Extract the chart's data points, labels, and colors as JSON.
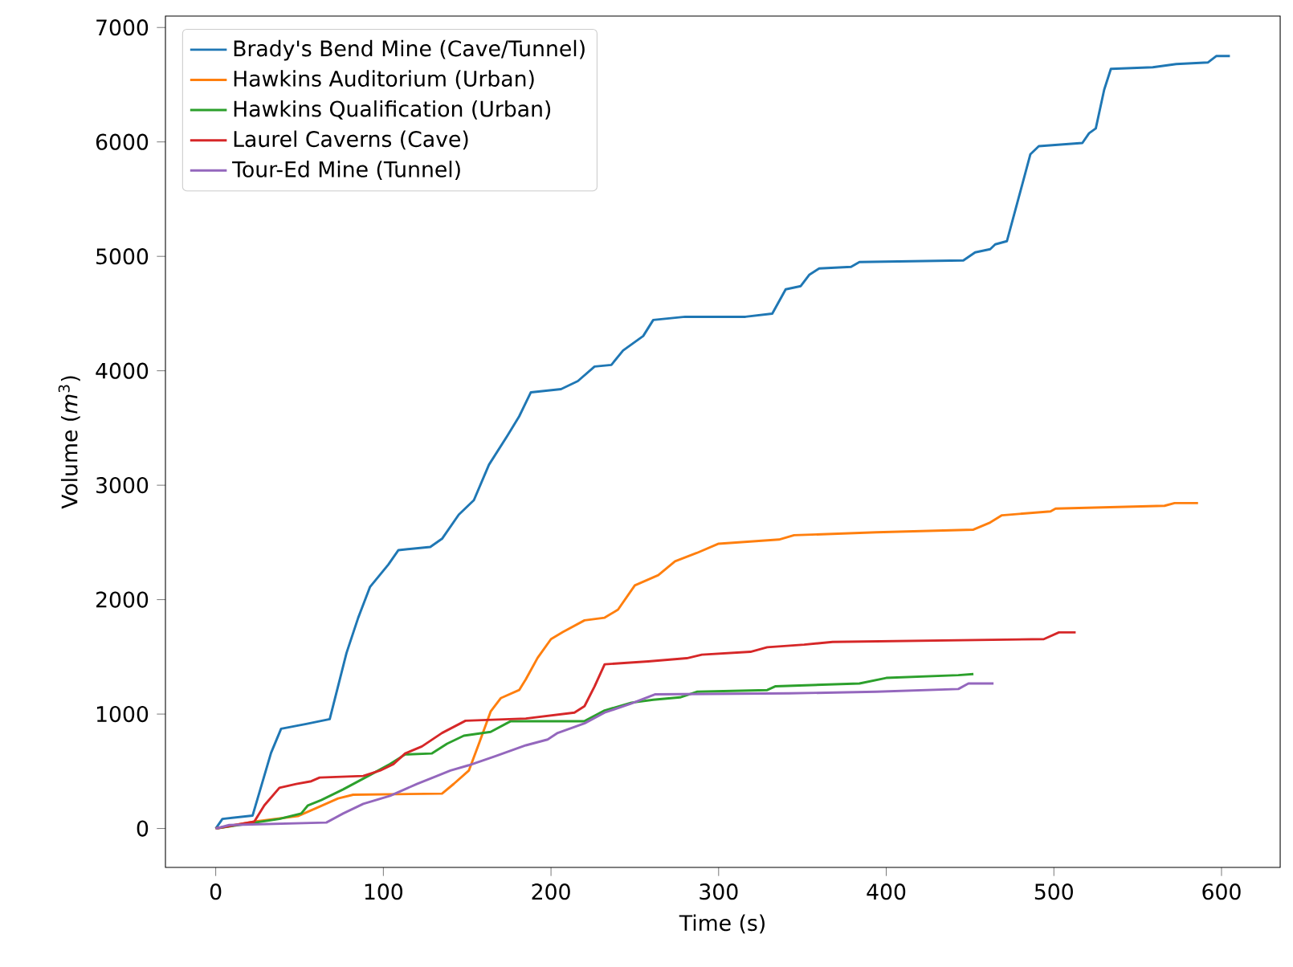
{
  "chart_data": {
    "type": "line",
    "xlabel": "Time (s)",
    "ylabel": "Volume (*m*$^{3}$)",
    "xlim": [
      -30,
      635
    ],
    "ylim": [
      -340,
      7100
    ],
    "xticks": [
      0,
      100,
      200,
      300,
      400,
      500,
      600
    ],
    "yticks": [
      0,
      1000,
      2000,
      3000,
      4000,
      5000,
      6000,
      7000
    ],
    "grid": false,
    "legend": "top left",
    "marker": "none",
    "line_style": "solid",
    "series": [
      {
        "name": "Brady's Bend Mine (Cave/Tunnel)",
        "color": "#1f77b4",
        "x": [
          0,
          4,
          22,
          33,
          39,
          54,
          68,
          78,
          85,
          92,
          103,
          109,
          128,
          135,
          145,
          154,
          163,
          174,
          181,
          188,
          206,
          216,
          226,
          236,
          243,
          255,
          261,
          280,
          316,
          332,
          340,
          349,
          354,
          360,
          379,
          384,
          446,
          453,
          462,
          465,
          472,
          486,
          491,
          517,
          521,
          525,
          530,
          534,
          559,
          573,
          592,
          597,
          605
        ],
        "values": [
          0,
          84,
          113,
          661,
          872,
          914,
          956,
          1533,
          1842,
          2110,
          2307,
          2433,
          2461,
          2532,
          2743,
          2869,
          3179,
          3432,
          3601,
          3812,
          3840,
          3910,
          4037,
          4051,
          4177,
          4304,
          4444,
          4472,
          4472,
          4500,
          4712,
          4740,
          4838,
          4894,
          4908,
          4950,
          4965,
          5035,
          5063,
          5105,
          5133,
          5893,
          5963,
          5991,
          6076,
          6118,
          6456,
          6638,
          6652,
          6680,
          6695,
          6751,
          6751
        ]
      },
      {
        "name": "Hawkins Auditorium (Urban)",
        "color": "#ff7f0e",
        "x": [
          0,
          23,
          49,
          60,
          73,
          82,
          135,
          142,
          151,
          157,
          164,
          170,
          181,
          185,
          192,
          200,
          207,
          220,
          232,
          240,
          250,
          264,
          274,
          287,
          300,
          336,
          345,
          394,
          452,
          462,
          469,
          498,
          501,
          566,
          572,
          586
        ],
        "values": [
          0,
          60,
          108,
          178,
          263,
          295,
          305,
          390,
          506,
          741,
          1022,
          1139,
          1210,
          1304,
          1491,
          1655,
          1716,
          1819,
          1842,
          1913,
          2124,
          2214,
          2335,
          2408,
          2489,
          2525,
          2563,
          2588,
          2612,
          2674,
          2737,
          2771,
          2796,
          2820,
          2844,
          2844
        ]
      },
      {
        "name": "Hawkins Qualification (Urban)",
        "color": "#2ca02c",
        "x": [
          0,
          38,
          51,
          55,
          63,
          76,
          91,
          104,
          113,
          129,
          138,
          148,
          164,
          176,
          220,
          232,
          248,
          261,
          277,
          287,
          329,
          334,
          384,
          400,
          443,
          452
        ],
        "values": [
          0,
          84,
          131,
          202,
          249,
          342,
          459,
          563,
          647,
          656,
          741,
          811,
          844,
          938,
          938,
          1031,
          1100,
          1125,
          1146,
          1195,
          1210,
          1243,
          1267,
          1316,
          1340,
          1350
        ]
      },
      {
        "name": "Laurel Caverns (Cave)",
        "color": "#d62728",
        "x": [
          0,
          23,
          29,
          38,
          48,
          57,
          62,
          88,
          98,
          106,
          113,
          123,
          135,
          149,
          185,
          214,
          220,
          226,
          232,
          258,
          281,
          290,
          319,
          329,
          351,
          368,
          494,
          503,
          513
        ],
        "values": [
          0,
          60,
          202,
          356,
          389,
          413,
          445,
          459,
          506,
          563,
          656,
          717,
          835,
          942,
          961,
          1013,
          1069,
          1242,
          1435,
          1460,
          1488,
          1519,
          1544,
          1584,
          1607,
          1631,
          1655,
          1714,
          1714
        ]
      },
      {
        "name": "Tour-Ed Mine (Tunnel)",
        "color": "#9467bd",
        "x": [
          0,
          8,
          66,
          76,
          88,
          104,
          120,
          132,
          140,
          151,
          167,
          185,
          198,
          204,
          220,
          232,
          248,
          262,
          342,
          394,
          443,
          449,
          464
        ],
        "values": [
          0,
          30,
          52,
          131,
          215,
          286,
          389,
          459,
          506,
          553,
          633,
          727,
          778,
          835,
          919,
          1013,
          1093,
          1172,
          1181,
          1195,
          1219,
          1267,
          1267
        ]
      }
    ]
  }
}
